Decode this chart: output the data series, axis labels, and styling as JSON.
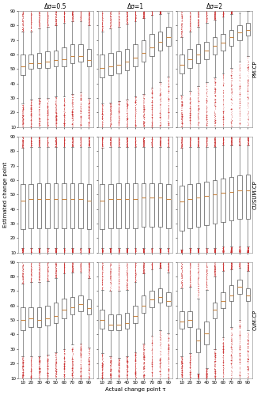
{
  "row_labels": [
    "PM-CP",
    "CUSUM-CP",
    "CvM-CP"
  ],
  "col_labels": [
    "Δσ=0.5",
    "Δσ=1",
    "Δσ=2"
  ],
  "x_ticks": [
    10,
    20,
    30,
    40,
    50,
    60,
    70,
    80,
    90
  ],
  "x_label": "Actual change point τ",
  "y_label": "Estimated change point",
  "y_lim": [
    10,
    90
  ],
  "box_color": "white",
  "median_color": "#cc8844",
  "whisker_color": "#666666",
  "flier_color": "#cc3333",
  "panels": {
    "PM-CP": {
      "delta_0.5": {
        "positions": [
          10,
          20,
          30,
          40,
          50,
          60,
          70,
          80,
          90
        ],
        "q1": [
          46,
          50,
          51,
          51,
          52,
          52,
          54,
          55,
          52
        ],
        "median": [
          52,
          54,
          54,
          55,
          56,
          57,
          59,
          59,
          56
        ],
        "q3": [
          60,
          60,
          61,
          62,
          63,
          65,
          67,
          67,
          64
        ],
        "whislo": [
          26,
          29,
          30,
          30,
          31,
          31,
          33,
          34,
          30
        ],
        "whishi": [
          76,
          76,
          78,
          79,
          80,
          82,
          83,
          83,
          80
        ]
      },
      "delta_1": {
        "positions": [
          10,
          20,
          30,
          40,
          50,
          60,
          70,
          80,
          90
        ],
        "q1": [
          44,
          46,
          47,
          49,
          52,
          55,
          59,
          63,
          66
        ],
        "median": [
          51,
          52,
          53,
          55,
          58,
          61,
          65,
          69,
          72
        ],
        "q3": [
          60,
          61,
          62,
          64,
          67,
          70,
          74,
          76,
          79
        ],
        "whislo": [
          26,
          27,
          28,
          29,
          31,
          33,
          37,
          41,
          45
        ],
        "whishi": [
          76,
          78,
          79,
          81,
          83,
          85,
          87,
          88,
          89
        ]
      },
      "delta_2": {
        "positions": [
          10,
          20,
          30,
          40,
          50,
          60,
          70,
          80,
          90
        ],
        "q1": [
          47,
          51,
          54,
          57,
          60,
          63,
          66,
          70,
          73
        ],
        "median": [
          53,
          57,
          60,
          63,
          66,
          68,
          72,
          75,
          77
        ],
        "q3": [
          60,
          64,
          67,
          69,
          72,
          74,
          77,
          80,
          82
        ],
        "whislo": [
          32,
          35,
          38,
          41,
          44,
          47,
          51,
          55,
          59
        ],
        "whishi": [
          72,
          76,
          79,
          82,
          84,
          86,
          88,
          89,
          90
        ]
      }
    },
    "CUSUM-CP": {
      "delta_0.5": {
        "positions": [
          10,
          20,
          30,
          40,
          50,
          60,
          70,
          80,
          90
        ],
        "q1": [
          26,
          27,
          27,
          27,
          27,
          27,
          27,
          27,
          26
        ],
        "median": [
          46,
          47,
          47,
          47,
          47,
          47,
          47,
          47,
          46
        ],
        "q3": [
          57,
          57,
          58,
          58,
          58,
          58,
          58,
          58,
          57
        ],
        "whislo": [
          13,
          13,
          13,
          13,
          13,
          13,
          13,
          13,
          13
        ],
        "whishi": [
          82,
          83,
          83,
          83,
          83,
          83,
          83,
          83,
          83
        ]
      },
      "delta_1": {
        "positions": [
          10,
          20,
          30,
          40,
          50,
          60,
          70,
          80,
          90
        ],
        "q1": [
          26,
          27,
          27,
          27,
          27,
          28,
          28,
          28,
          27
        ],
        "median": [
          46,
          47,
          47,
          47,
          47,
          48,
          48,
          48,
          47
        ],
        "q3": [
          57,
          57,
          58,
          58,
          58,
          58,
          58,
          58,
          57
        ],
        "whislo": [
          13,
          13,
          13,
          13,
          13,
          13,
          13,
          13,
          13
        ],
        "whishi": [
          82,
          83,
          83,
          83,
          83,
          83,
          83,
          83,
          83
        ]
      },
      "delta_2": {
        "positions": [
          10,
          20,
          30,
          40,
          50,
          60,
          70,
          80,
          90
        ],
        "q1": [
          25,
          27,
          28,
          29,
          30,
          31,
          32,
          33,
          33
        ],
        "median": [
          45,
          47,
          48,
          49,
          50,
          51,
          52,
          53,
          53
        ],
        "q3": [
          56,
          57,
          58,
          59,
          60,
          61,
          62,
          63,
          64
        ],
        "whislo": [
          12,
          13,
          13,
          13,
          13,
          14,
          14,
          14,
          14
        ],
        "whishi": [
          82,
          83,
          83,
          83,
          83,
          84,
          84,
          84,
          84
        ]
      }
    },
    "CvM-CP": {
      "delta_0.5": {
        "positions": [
          10,
          20,
          30,
          40,
          50,
          60,
          70,
          80,
          90
        ],
        "q1": [
          43,
          45,
          45,
          46,
          48,
          51,
          54,
          56,
          54
        ],
        "median": [
          50,
          51,
          50,
          51,
          53,
          57,
          59,
          61,
          58
        ],
        "q3": [
          59,
          59,
          59,
          60,
          62,
          65,
          66,
          67,
          64
        ],
        "whislo": [
          25,
          25,
          25,
          26,
          28,
          30,
          33,
          34,
          31
        ],
        "whishi": [
          75,
          76,
          76,
          77,
          79,
          82,
          83,
          83,
          79
        ]
      },
      "delta_1": {
        "positions": [
          10,
          20,
          30,
          40,
          50,
          60,
          70,
          80,
          90
        ],
        "q1": [
          44,
          43,
          43,
          44,
          48,
          55,
          59,
          62,
          60
        ],
        "median": [
          50,
          47,
          47,
          48,
          53,
          60,
          64,
          66,
          63
        ],
        "q3": [
          57,
          54,
          54,
          55,
          60,
          67,
          70,
          72,
          69
        ],
        "whislo": [
          27,
          25,
          24,
          25,
          28,
          34,
          39,
          43,
          41
        ],
        "whishi": [
          71,
          70,
          70,
          71,
          76,
          82,
          85,
          86,
          83
        ]
      },
      "delta_2": {
        "positions": [
          10,
          20,
          30,
          40,
          50,
          60,
          70,
          80,
          90
        ],
        "q1": [
          44,
          45,
          28,
          33,
          51,
          58,
          63,
          68,
          63
        ],
        "median": [
          49,
          50,
          36,
          41,
          57,
          63,
          67,
          73,
          67
        ],
        "q3": [
          56,
          56,
          44,
          49,
          62,
          69,
          74,
          78,
          72
        ],
        "whislo": [
          25,
          27,
          13,
          17,
          30,
          38,
          45,
          50,
          43
        ],
        "whishi": [
          72,
          73,
          65,
          71,
          80,
          84,
          85,
          86,
          84
        ]
      }
    }
  },
  "figsize": [
    3.3,
    5.0
  ],
  "dpi": 100
}
